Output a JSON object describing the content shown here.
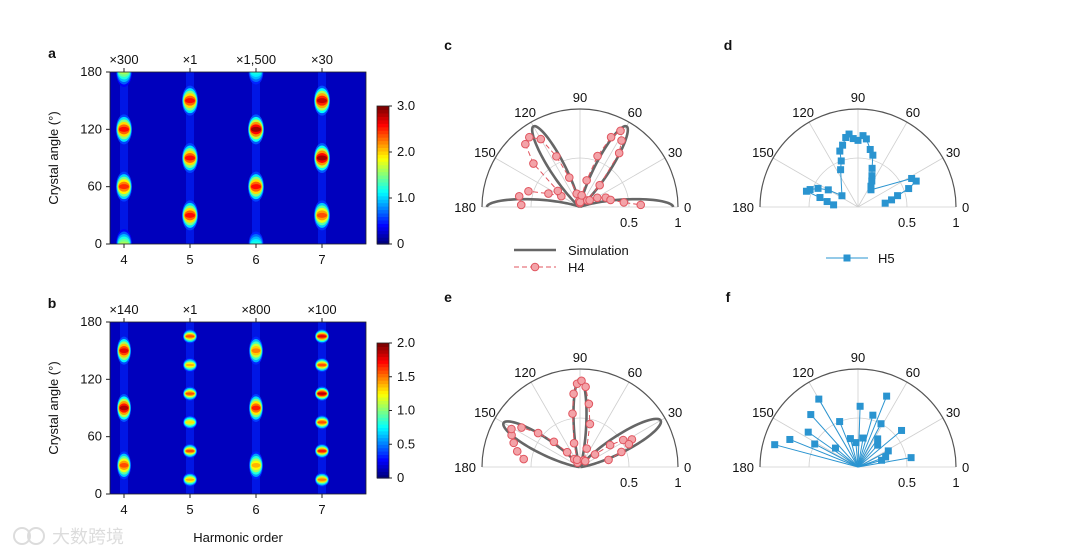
{
  "chart_data": [
    {
      "id": "a",
      "type": "heatmap",
      "panel_label": "a",
      "xlabel": "",
      "ylabel": "Crystal angle (°)",
      "x_ticks": [
        "4",
        "5",
        "6",
        "7"
      ],
      "y_ticks": [
        "0",
        "60",
        "120",
        "180"
      ],
      "ylim": [
        0,
        180
      ],
      "scale_factors": [
        "×300",
        "×1",
        "×1,500",
        "×30"
      ],
      "colorbar": {
        "min": 0,
        "max": 3,
        "ticks": [
          "0",
          "1.0",
          "2.0",
          "3.0"
        ]
      },
      "harmonics": [
        {
          "order": 4,
          "peaks": [
            {
              "angle": 0,
              "v": 1.6
            },
            {
              "angle": 60,
              "v": 2.5
            },
            {
              "angle": 120,
              "v": 2.6
            },
            {
              "angle": 180,
              "v": 1.6
            }
          ]
        },
        {
          "order": 5,
          "peaks": [
            {
              "angle": 30,
              "v": 2.6
            },
            {
              "angle": 90,
              "v": 2.6
            },
            {
              "angle": 150,
              "v": 2.6
            }
          ]
        },
        {
          "order": 6,
          "peaks": [
            {
              "angle": 0,
              "v": 1.2
            },
            {
              "angle": 60,
              "v": 2.6
            },
            {
              "angle": 120,
              "v": 2.9
            },
            {
              "angle": 180,
              "v": 1.2
            }
          ]
        },
        {
          "order": 7,
          "peaks": [
            {
              "angle": 30,
              "v": 2.4
            },
            {
              "angle": 90,
              "v": 2.9
            },
            {
              "angle": 150,
              "v": 2.8
            }
          ]
        }
      ]
    },
    {
      "id": "b",
      "type": "heatmap",
      "panel_label": "b",
      "xlabel": "Harmonic order",
      "ylabel": "Crystal angle (°)",
      "x_ticks": [
        "4",
        "5",
        "6",
        "7"
      ],
      "y_ticks": [
        "0",
        "60",
        "120",
        "180"
      ],
      "ylim": [
        0,
        180
      ],
      "scale_factors": [
        "×140",
        "×1",
        "×800",
        "×100"
      ],
      "colorbar": {
        "min": 0,
        "max": 2,
        "ticks": [
          "0",
          "0.5",
          "1.0",
          "1.5",
          "2.0"
        ]
      },
      "harmonics": [
        {
          "order": 4,
          "peaks": [
            {
              "angle": 30,
              "v": 1.6
            },
            {
              "angle": 90,
              "v": 1.9
            },
            {
              "angle": 150,
              "v": 1.8
            }
          ]
        },
        {
          "order": 5,
          "peaks": [
            {
              "angle": 15,
              "v": 1.4
            },
            {
              "angle": 45,
              "v": 1.6
            },
            {
              "angle": 75,
              "v": 1.3
            },
            {
              "angle": 105,
              "v": 1.6
            },
            {
              "angle": 135,
              "v": 1.4
            },
            {
              "angle": 165,
              "v": 1.6
            }
          ]
        },
        {
          "order": 6,
          "peaks": [
            {
              "angle": 30,
              "v": 1.4
            },
            {
              "angle": 90,
              "v": 1.7
            },
            {
              "angle": 150,
              "v": 1.5
            }
          ]
        },
        {
          "order": 7,
          "peaks": [
            {
              "angle": 15,
              "v": 1.5
            },
            {
              "angle": 45,
              "v": 1.7
            },
            {
              "angle": 75,
              "v": 1.6
            },
            {
              "angle": 105,
              "v": 1.9
            },
            {
              "angle": 135,
              "v": 1.6
            },
            {
              "angle": 165,
              "v": 1.8
            }
          ]
        }
      ]
    },
    {
      "id": "c",
      "type": "polar",
      "panel_label": "c",
      "r_ticks": [
        "0.5",
        "1"
      ],
      "angle_ticks": [
        "180",
        "150",
        "120",
        "90",
        "60",
        "30",
        "0"
      ],
      "legend": {
        "simulation_label": "Simulation",
        "series_label": "H4"
      },
      "simulation": {
        "lobes": [
          {
            "center": 0,
            "amp": 0.95,
            "width": 8
          },
          {
            "center": 60,
            "amp": 0.95,
            "width": 8
          },
          {
            "center": 120,
            "amp": 0.95,
            "width": 8
          },
          {
            "center": 180,
            "amp": 0.95,
            "width": 8
          }
        ]
      },
      "series": {
        "name": "H4",
        "angles": [
          178,
          170,
          163,
          157,
          150,
          144,
          137,
          131,
          126,
          120,
          115,
          110,
          104,
          98,
          93,
          87,
          82,
          76,
          71,
          66,
          62,
          58,
          54,
          48,
          42,
          35,
          28,
          20,
          13,
          6,
          2
        ],
        "r": [
          0.6,
          0.63,
          0.55,
          0.35,
          0.22,
          0.28,
          0.65,
          0.85,
          0.88,
          0.8,
          0.57,
          0.32,
          0.14,
          0.06,
          0.04,
          0.05,
          0.12,
          0.28,
          0.55,
          0.78,
          0.88,
          0.8,
          0.68,
          0.3,
          0.1,
          0.12,
          0.2,
          0.28,
          0.32,
          0.45,
          0.62
        ]
      }
    },
    {
      "id": "d",
      "type": "polar",
      "panel_label": "d",
      "r_ticks": [
        "0.5",
        "1"
      ],
      "angle_ticks": [
        "180",
        "150",
        "120",
        "90",
        "60",
        "30",
        "0"
      ],
      "legend": {
        "series_label": "H5"
      },
      "series": {
        "name": "H5",
        "angles": [
          145,
          150,
          155,
          160,
          163,
          166,
          170,
          175,
          115,
          110,
          108,
          104,
          100,
          97,
          94,
          90,
          86,
          83,
          78,
          74,
          70,
          66,
          62,
          58,
          53,
          28,
          24,
          20,
          16,
          12,
          8
        ],
        "r": [
          0.2,
          0.35,
          0.45,
          0.52,
          0.55,
          0.4,
          0.32,
          0.25,
          0.42,
          0.5,
          0.6,
          0.65,
          0.72,
          0.75,
          0.7,
          0.68,
          0.73,
          0.7,
          0.6,
          0.55,
          0.42,
          0.35,
          0.3,
          0.25,
          0.22,
          0.62,
          0.65,
          0.55,
          0.42,
          0.35,
          0.28
        ],
        "sorted": true
      }
    },
    {
      "id": "e",
      "type": "polar",
      "panel_label": "e",
      "r_ticks": [
        "0.5",
        "1"
      ],
      "angle_ticks": [
        "180",
        "150",
        "120",
        "90",
        "60",
        "30",
        "0"
      ],
      "simulation": {
        "lobes": [
          {
            "center": 90,
            "amp": 0.9,
            "width": 7
          },
          {
            "center": 150,
            "amp": 0.9,
            "width": 9
          },
          {
            "center": 30,
            "amp": 0.95,
            "width": 9
          }
        ]
      },
      "series": {
        "name": "H4",
        "angles": [
          172,
          166,
          160,
          155,
          151,
          146,
          141,
          136,
          131,
          126,
          120,
          112,
          104,
          98,
          95,
          92,
          89,
          86,
          82,
          77,
          70,
          60,
          48,
          40,
          36,
          32,
          28,
          25,
          20,
          14
        ],
        "r": [
          0.58,
          0.66,
          0.72,
          0.77,
          0.8,
          0.72,
          0.55,
          0.37,
          0.2,
          0.1,
          0.05,
          0.08,
          0.25,
          0.55,
          0.75,
          0.85,
          0.88,
          0.82,
          0.65,
          0.45,
          0.2,
          0.08,
          0.08,
          0.2,
          0.38,
          0.52,
          0.6,
          0.55,
          0.45,
          0.3
        ]
      }
    },
    {
      "id": "f",
      "type": "polar",
      "panel_label": "f",
      "r_ticks": [
        "0.5",
        "1"
      ],
      "angle_ticks": [
        "180",
        "150",
        "120",
        "90",
        "60",
        "30",
        "0"
      ],
      "series": {
        "name": "H5",
        "angles": [
          165,
          158,
          152,
          145,
          140,
          132,
          120,
          112,
          105,
          95,
          88,
          80,
          74,
          68,
          62,
          55,
          48,
          40,
          28,
          20,
          16,
          10
        ],
        "r": [
          0.88,
          0.75,
          0.5,
          0.62,
          0.3,
          0.72,
          0.8,
          0.5,
          0.3,
          0.25,
          0.62,
          0.3,
          0.55,
          0.78,
          0.5,
          0.35,
          0.3,
          0.58,
          0.35,
          0.3,
          0.25,
          0.55
        ],
        "star": true
      }
    }
  ],
  "watermark": "大数跨境"
}
